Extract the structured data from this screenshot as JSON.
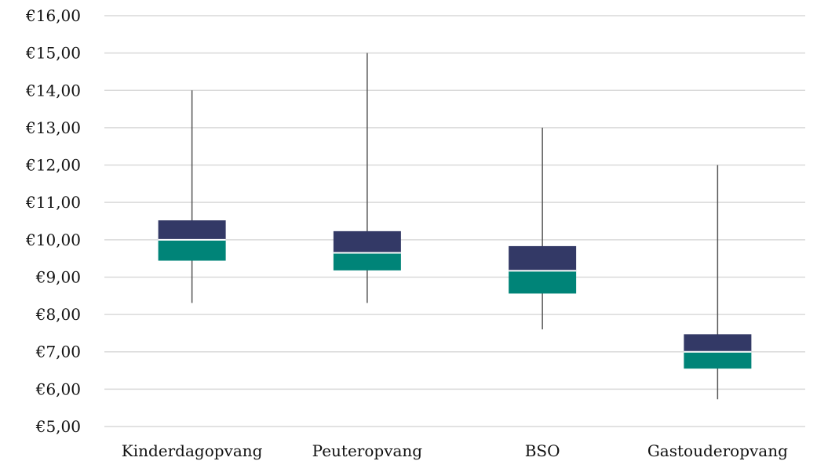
{
  "chart_data": {
    "type": "boxplot",
    "title": "",
    "xlabel": "",
    "ylabel": "",
    "ylim": [
      5,
      16
    ],
    "y_ticks": [
      5,
      6,
      7,
      8,
      9,
      10,
      11,
      12,
      13,
      14,
      15,
      16
    ],
    "y_tick_labels": [
      "€5,00",
      "€6,00",
      "€7,00",
      "€8,00",
      "€9,00",
      "€10,00",
      "€11,00",
      "€12,00",
      "€13,00",
      "€14,00",
      "€15,00",
      "€16,00"
    ],
    "grid": true,
    "legend": "none",
    "categories": [
      "Kinderdagopvang",
      "Peuteropvang",
      "BSO",
      "Gastouderopvang"
    ],
    "boxes": [
      {
        "category": "Kinderdagopvang",
        "min": 8.31,
        "q1": 9.44,
        "median": 10.0,
        "q3": 10.52,
        "max": 14.0
      },
      {
        "category": "Peuteropvang",
        "min": 8.31,
        "q1": 9.18,
        "median": 9.65,
        "q3": 10.23,
        "max": 15.0
      },
      {
        "category": "BSO",
        "min": 7.6,
        "q1": 8.56,
        "median": 9.17,
        "q3": 9.83,
        "max": 13.0
      },
      {
        "category": "Gastouderopvang",
        "min": 5.73,
        "q1": 6.55,
        "median": 7.0,
        "q3": 7.47,
        "max": 12.0
      }
    ],
    "colors": {
      "upper_box": "#333966",
      "lower_box": "#008478",
      "whisker": "#555555",
      "grid": "#d9d9d9",
      "median_line": "#ffffff"
    }
  }
}
